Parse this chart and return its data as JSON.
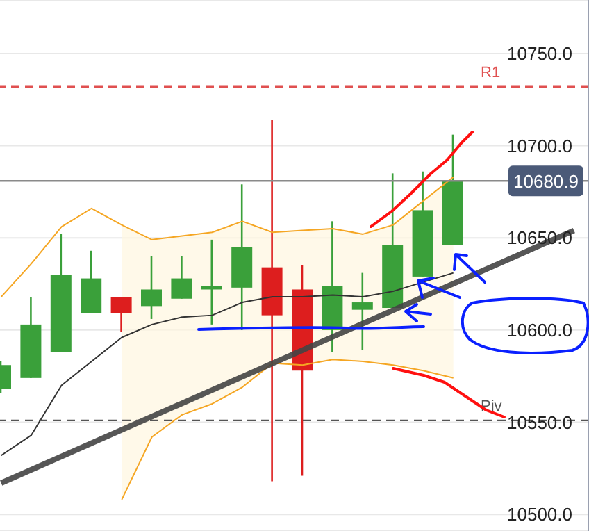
{
  "chart_data": {
    "type": "candlestick",
    "categories": [
      null,
      null,
      null,
      null,
      null,
      null,
      null,
      null,
      null,
      null,
      null,
      null,
      null,
      null,
      null,
      null,
      null,
      null,
      null,
      null
    ],
    "ohlc": [
      [
        10568,
        10583,
        10566,
        10581
      ],
      [
        10574,
        10618,
        10574,
        10603
      ],
      [
        10588,
        10652,
        10588,
        10630
      ],
      [
        10609,
        10643,
        10609,
        10628
      ],
      [
        10618,
        10618,
        10599,
        10609
      ],
      [
        10613,
        10640,
        10606,
        10622
      ],
      [
        10617,
        10640,
        10617,
        10628
      ],
      [
        10622,
        10649,
        10603,
        10624
      ],
      [
        10623,
        10679,
        10600,
        10645
      ],
      [
        10634,
        10714,
        10518,
        10608
      ],
      [
        10622,
        10635,
        10521,
        10578
      ],
      [
        10600,
        10659,
        10588,
        10624
      ],
      [
        10611,
        10631,
        10589,
        10615
      ],
      [
        10612,
        10685,
        10612,
        10646
      ],
      [
        10629,
        10686,
        10629,
        10665
      ],
      [
        10646,
        10706,
        10646,
        10681
      ],
      null,
      null,
      null,
      null
    ],
    "colors": [
      "#3aa03a",
      "#3aa03a",
      "#3aa03a",
      "#3aa03a",
      "#dd1e1e",
      "#3aa03a",
      "#3aa03a",
      "#3aa03a",
      "#3aa03a",
      "#dd1e1e",
      "#dd1e1e",
      "#3aa03a",
      "#3aa03a",
      "#3aa03a",
      "#3aa03a",
      "#3aa03a",
      null,
      null,
      null,
      null
    ],
    "series": [
      {
        "type": "line",
        "color": "#333333",
        "values": [
          10532,
          10543,
          10570,
          10583,
          10596,
          10603,
          10607,
          10608,
          10615,
          10618,
          10618,
          10619,
          10618,
          10621,
          null,
          10631,
          null,
          null,
          null,
          null
        ],
        "lower": [
          null,
          null,
          null,
          null,
          10508,
          10542,
          10554,
          10560,
          10569,
          10582,
          10581,
          10584,
          10583,
          10581,
          10578,
          10574,
          null,
          null,
          null,
          null
        ],
        "upper": [
          null,
          null,
          null,
          null,
          10657,
          10649,
          10651,
          10653,
          10659,
          10653,
          10654,
          10655,
          10652,
          10657,
          10670,
          10683,
          null,
          null,
          null,
          null
        ]
      },
      {
        "type": "line",
        "color": "#f5a623",
        "values": [
          10618,
          10636,
          10656,
          10666,
          10657,
          10649,
          10651,
          10653,
          10659,
          10653,
          10654,
          10655,
          10652,
          10657,
          10670,
          10683,
          null,
          null,
          null,
          null
        ]
      },
      {
        "type": "line",
        "color": "#f5a623",
        "values": [
          null,
          null,
          null,
          null,
          10508,
          10542,
          10554,
          10560,
          10569,
          10582,
          10581,
          10584,
          10583,
          10581,
          10578,
          10574,
          null,
          null,
          null,
          null
        ]
      },
      {
        "type": "line",
        "color": "#444444",
        "values": [
          10517,
          null,
          null,
          null,
          null,
          null,
          null,
          null,
          null,
          null,
          null,
          null,
          null,
          null,
          null,
          null,
          null,
          null,
          null,
          10654
        ]
      }
    ],
    "ylim": [
      10491,
      10779
    ],
    "yticks": [
      {
        "value": 10500,
        "label": "10500.0"
      },
      {
        "value": 10550,
        "label": "10550.0"
      },
      {
        "value": 10600,
        "label": "10600.0"
      },
      {
        "value": 10650,
        "label": "10650.0"
      },
      {
        "value": 10700,
        "label": "10700.0"
      },
      {
        "value": 10750,
        "label": "10750.0"
      }
    ],
    "grid": true,
    "tick_labels": "y",
    "ref_lines": [
      {
        "axis": "y",
        "value": 10732,
        "label": "R1",
        "color": "#e05050",
        "line_style": "dashed"
      },
      {
        "axis": "y",
        "value": 10551,
        "label": "Piv",
        "color": "#555555",
        "line_style": "dashed"
      },
      {
        "axis": "y",
        "value": 10680.9,
        "label": "10680.9",
        "color": "#8a8a8a",
        "line_style": "solid"
      }
    ]
  }
}
